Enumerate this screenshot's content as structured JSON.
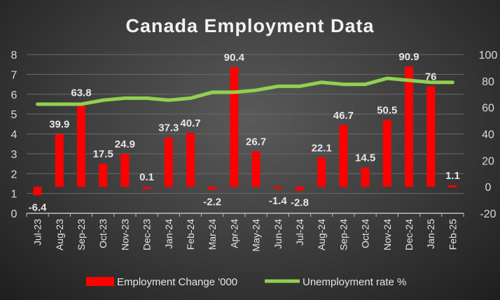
{
  "chart_data": {
    "type": "bar+line",
    "title": "Canada Employment Data",
    "categories": [
      "Jul-23",
      "Aug-23",
      "Sep-23",
      "Oct-23",
      "Nov-23",
      "Dec-23",
      "Jan-24",
      "Feb-24",
      "Mar-24",
      "Apr-24",
      "May-24",
      "Jun-24",
      "Jul-24",
      "Aug-24",
      "Sep-24",
      "Oct-24",
      "Nov-24",
      "Dec-24",
      "Jan-25",
      "Feb-25"
    ],
    "series": [
      {
        "name": "Employment Change '000",
        "type": "bar",
        "axis": "right",
        "color": "#ff0000",
        "values": [
          -6.4,
          39.9,
          63.8,
          17.5,
          24.9,
          0.1,
          37.3,
          40.7,
          -2.2,
          90.4,
          26.7,
          -1.4,
          -2.8,
          22.1,
          46.7,
          14.5,
          50.5,
          90.9,
          76,
          1.1
        ],
        "labels": [
          "-6.4",
          "39.9",
          "63.8",
          "17.5",
          "24.9",
          "0.1",
          "37.3",
          "40.7",
          "-2.2",
          "90.4",
          "26.7",
          "-1.4",
          "-2.8",
          "22.1",
          "46.7",
          "14.5",
          "50.5",
          "90.9",
          "76",
          "1.1"
        ]
      },
      {
        "name": "Unemployment rate %",
        "type": "line",
        "axis": "left",
        "color": "#92d050",
        "values": [
          5.5,
          5.5,
          5.5,
          5.7,
          5.8,
          5.8,
          5.7,
          5.8,
          6.1,
          6.1,
          6.2,
          6.4,
          6.4,
          6.6,
          6.5,
          6.5,
          6.8,
          6.7,
          6.6,
          6.6
        ]
      }
    ],
    "left_axis": {
      "range": [
        0,
        8
      ],
      "ticks": [
        "0",
        "1",
        "2",
        "3",
        "4",
        "5",
        "6",
        "7",
        "8"
      ]
    },
    "right_axis": {
      "range": [
        -20,
        100
      ],
      "ticks": [
        "-20",
        "0",
        "20",
        "40",
        "60",
        "80",
        "100"
      ]
    },
    "grid": true,
    "legend": "bottom"
  }
}
